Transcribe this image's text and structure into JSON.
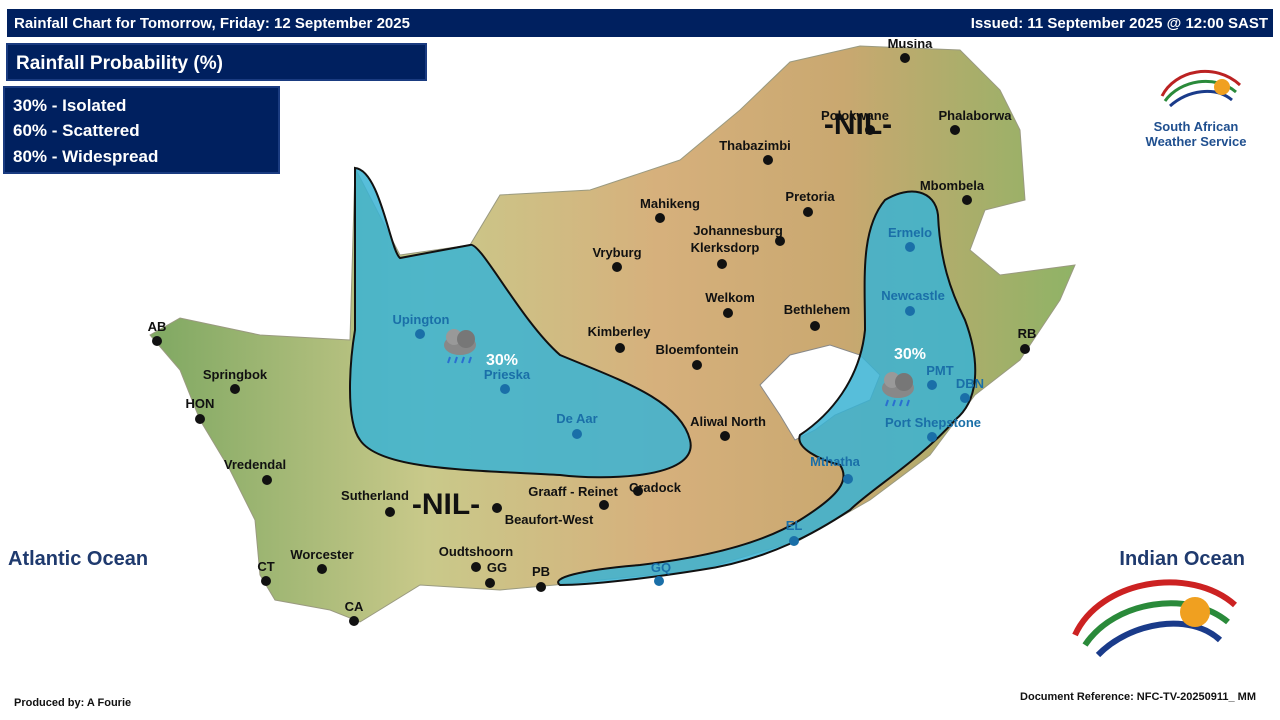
{
  "header": {
    "title": "Rainfall Chart for Tomorrow, Friday: 12 September 2025",
    "issued": "Issued: 11 September 2025 @ 12:00 SAST"
  },
  "legend": {
    "title": "Rainfall Probability (%)",
    "items": [
      "30% - Isolated",
      "60% - Scattered",
      "80% - Widespread"
    ]
  },
  "logo": {
    "line1": "South African",
    "line2": "Weather Service"
  },
  "map": {
    "oceans": [
      "Atlantic Ocean",
      "Indian Ocean"
    ],
    "zones": [
      "30%",
      "30%"
    ],
    "nil_labels": [
      "-NIL-",
      "-NIL-"
    ],
    "towns": [
      "Musina",
      "Polokwane",
      "Phalaborwa",
      "Thabazimbi",
      "Mbombela",
      "Pretoria",
      "Mahikeng",
      "Johannesburg",
      "Ermelo",
      "Klerksdorp",
      "Vryburg",
      "Newcastle",
      "Welkom",
      "Bethlehem",
      "RB",
      "AB",
      "Upington",
      "Kimberley",
      "Bloemfontein",
      "Springbok",
      "PMT",
      "DBN",
      "Prieska",
      "HON",
      "De Aar",
      "Aliwal North",
      "Port Shepstone",
      "Mthatha",
      "Vredendal",
      "Sutherland",
      "Graaff - Reinet",
      "Cradock",
      "Beaufort-West",
      "EL",
      "Worcester",
      "Oudtshoorn",
      "CT",
      "GG",
      "PB",
      "GQ",
      "CA"
    ]
  },
  "footer": {
    "producer": "Produced by: A Fourie",
    "reference": "Document Reference: NFC-TV-20250911_ MM"
  }
}
